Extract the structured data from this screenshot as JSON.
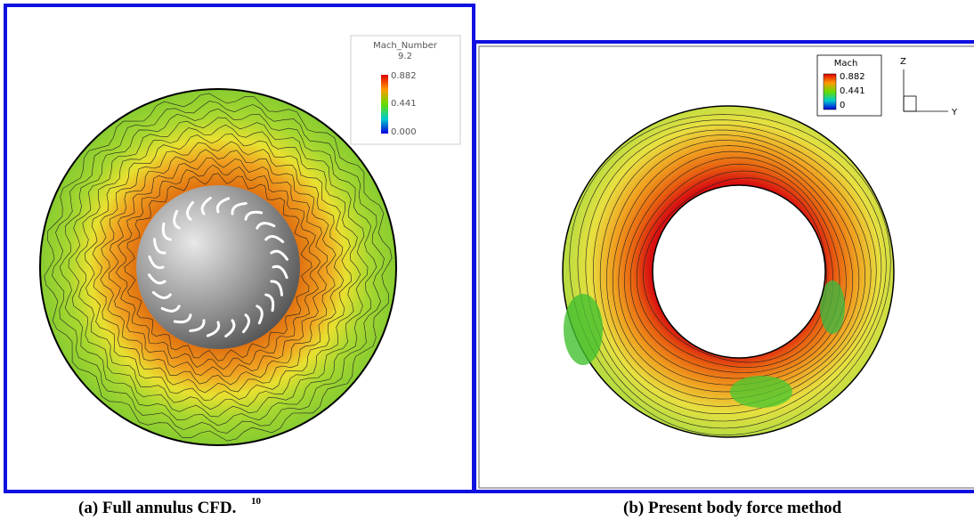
{
  "panels": [
    {
      "legend": {
        "title": "Mach_Number",
        "subtitle": "9.2",
        "labels": [
          "0.882",
          "0.441",
          "0.000"
        ]
      },
      "caption": {
        "text": "(a) Full annulus CFD.",
        "ref": "10"
      }
    },
    {
      "legend": {
        "title": "Mach",
        "labels": [
          "0.882",
          "0.441",
          "0"
        ]
      },
      "axes": {
        "z": "Z",
        "y": "Y"
      },
      "caption": {
        "text": "(b) Present body force method"
      }
    }
  ]
}
